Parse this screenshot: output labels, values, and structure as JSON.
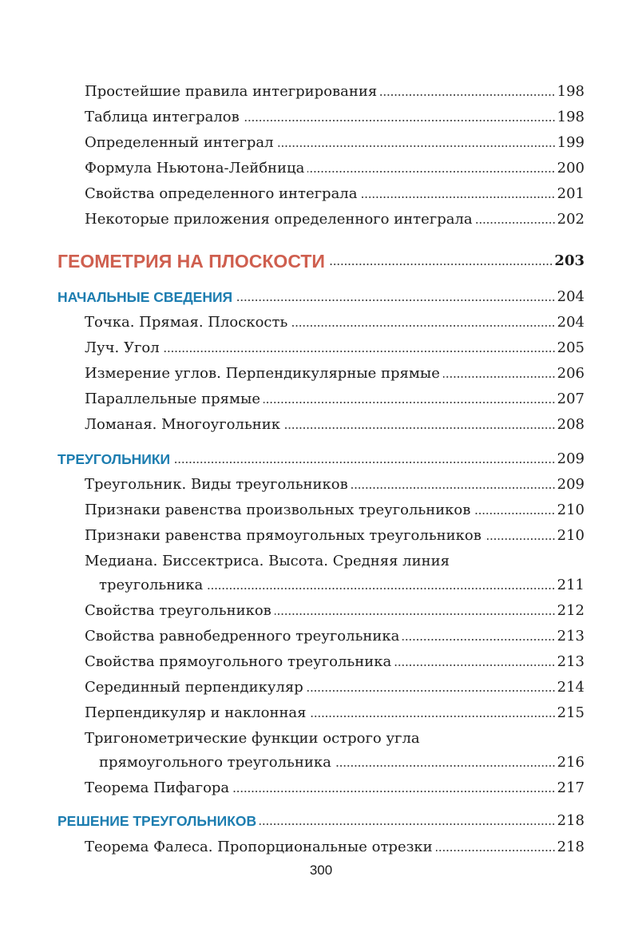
{
  "colors": {
    "section": "#cf5f4f",
    "subsection": "#1c7db0"
  },
  "entries": [
    {
      "type": "item",
      "title": "Простейшие правила интегрирования",
      "page": "198"
    },
    {
      "type": "item",
      "title": "Таблица интегралов",
      "page": "198"
    },
    {
      "type": "item",
      "title": "Определенный интеграл",
      "page": "199"
    },
    {
      "type": "item",
      "title": "Формула Ньютона-Лейбница",
      "page": "200"
    },
    {
      "type": "item",
      "title": "Свойства определенного интеграла",
      "page": "201"
    },
    {
      "type": "item",
      "title": "Некоторые приложения определенного интеграла",
      "page": "202"
    },
    {
      "type": "h1",
      "title": "ГЕОМЕТРИЯ НА ПЛОСКОСТИ",
      "page": "203"
    },
    {
      "type": "h2",
      "title": "НАЧАЛЬНЫЕ СВЕДЕНИЯ",
      "page": "204"
    },
    {
      "type": "item",
      "title": "Точка. Прямая. Плоскость",
      "page": "204"
    },
    {
      "type": "item",
      "title": "Луч. Угол",
      "page": "205"
    },
    {
      "type": "item",
      "title": "Измерение углов. Перпендикулярные прямые",
      "page": "206"
    },
    {
      "type": "item",
      "title": "Параллельные прямые",
      "page": "207"
    },
    {
      "type": "item",
      "title": "Ломаная. Многоугольник",
      "page": "208"
    },
    {
      "type": "h2",
      "title": "ТРЕУГОЛЬНИКИ",
      "page": "209"
    },
    {
      "type": "item",
      "title": "Треугольник. Виды треугольников",
      "page": "209"
    },
    {
      "type": "item",
      "title": "Признаки равенства произвольных треугольников",
      "page": "210"
    },
    {
      "type": "item",
      "title": "Признаки равенства прямоугольных треугольников",
      "page": "210"
    },
    {
      "type": "item",
      "title": "Медиана. Биссектриса. Высота. Средняя линия",
      "continuation": "треугольника",
      "page": "211"
    },
    {
      "type": "item",
      "title": "Свойства треугольников",
      "page": "212"
    },
    {
      "type": "item",
      "title": "Свойства равнобедренного треугольника",
      "page": "213"
    },
    {
      "type": "item",
      "title": "Свойства прямоугольного треугольника",
      "page": "213"
    },
    {
      "type": "item",
      "title": "Серединный перпендикуляр",
      "page": "214"
    },
    {
      "type": "item",
      "title": "Перпендикуляр и наклонная",
      "page": "215"
    },
    {
      "type": "item",
      "title": "Тригонометрические функции острого угла",
      "continuation": "прямоугольного треугольника",
      "page": "216"
    },
    {
      "type": "item",
      "title": "Теорема Пифагора",
      "page": "217"
    },
    {
      "type": "h2",
      "title": "РЕШЕНИЕ ТРЕУГОЛЬНИКОВ",
      "page": "218"
    },
    {
      "type": "item",
      "title": "Теорема Фалеса. Пропорциональные отрезки",
      "page": "218"
    }
  ],
  "page_number": "300"
}
